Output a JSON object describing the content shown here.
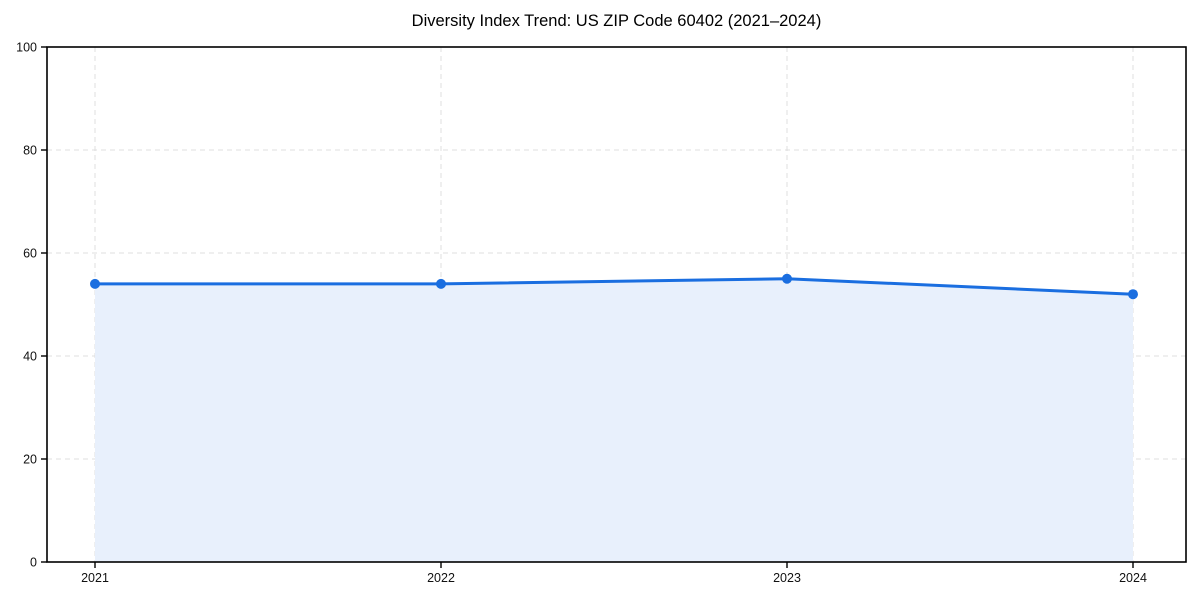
{
  "chart_data": {
    "type": "area",
    "title": "Diversity Index Trend: US ZIP Code 60402 (2021–2024)",
    "categories": [
      2021,
      2022,
      2023,
      2024
    ],
    "series": [
      {
        "name": "Diversity Index",
        "values": [
          54,
          54,
          55,
          52
        ]
      }
    ],
    "xlabel": "",
    "ylabel": "",
    "ylim": [
      0,
      100
    ],
    "yticks": [
      0,
      20,
      40,
      60,
      80,
      100
    ],
    "grid": true,
    "grid_style": "dashed",
    "legend_position": "none",
    "line_color": "#1a6ee0",
    "fill_color": "#e8f0fc",
    "marker": "circle"
  }
}
